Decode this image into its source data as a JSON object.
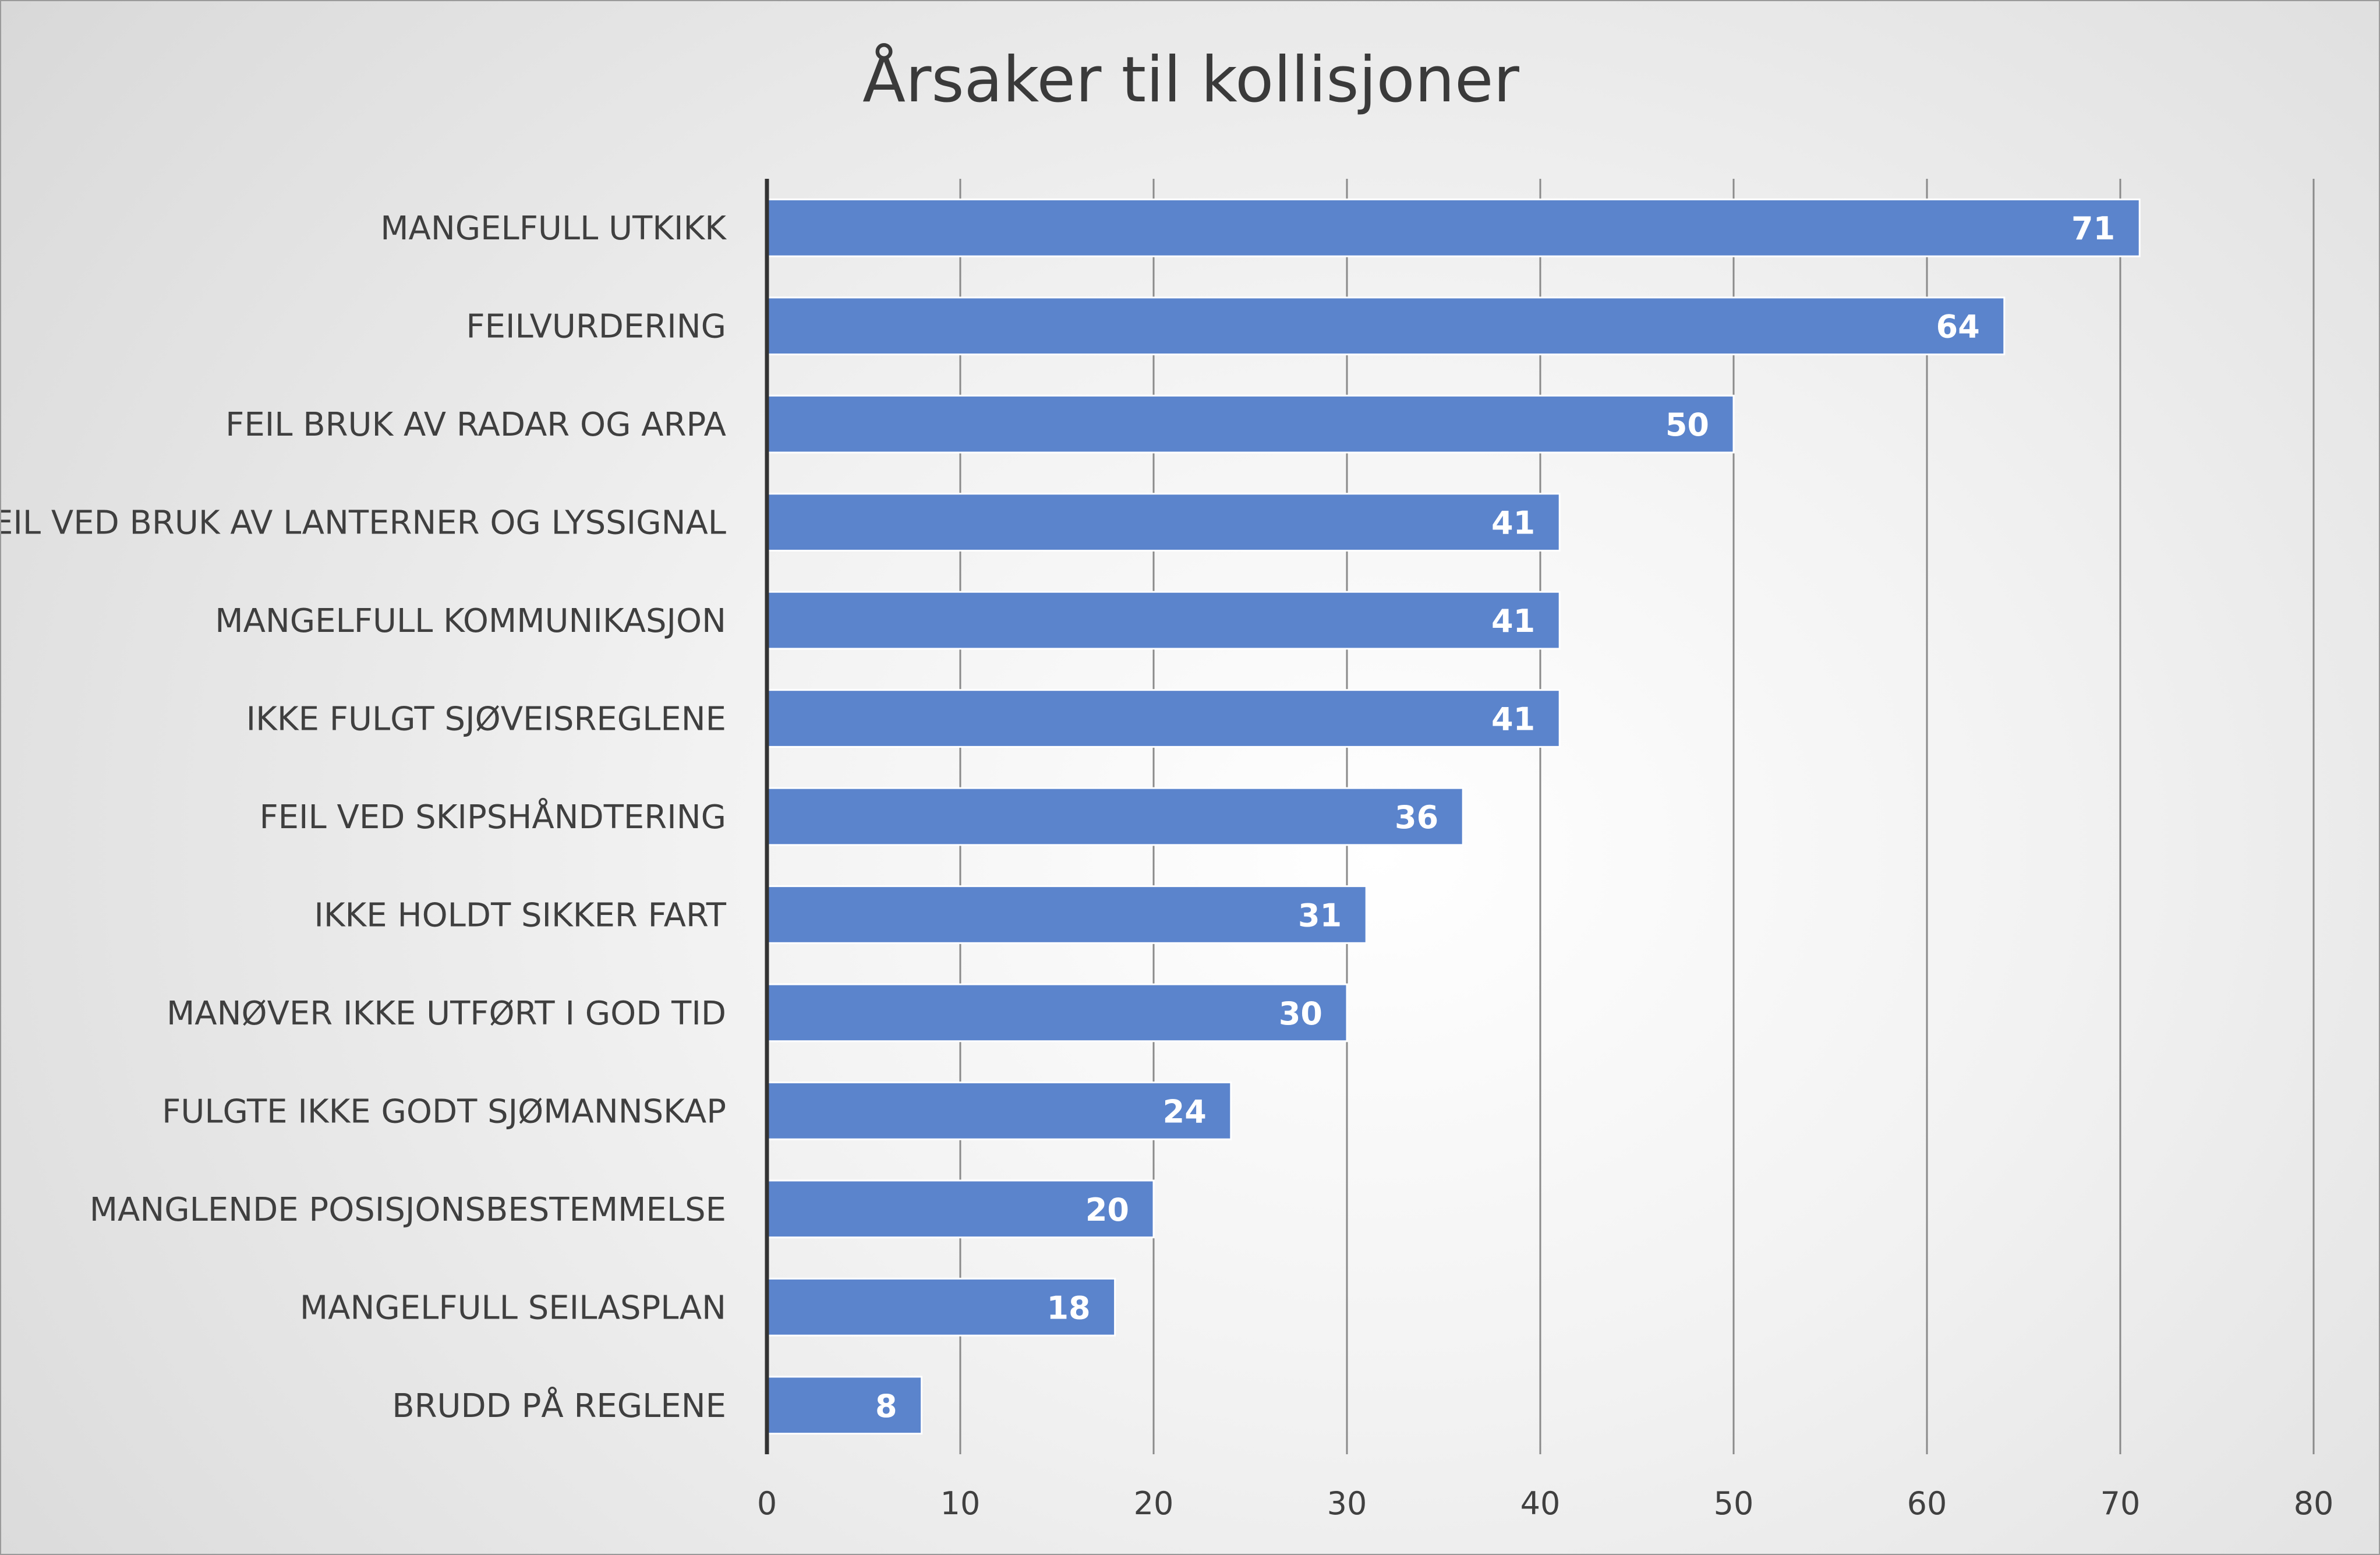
{
  "chart_data": {
    "type": "bar",
    "orientation": "horizontal",
    "title": "Årsaker til kollisjoner",
    "xlabel": "",
    "ylabel": "",
    "xlim": [
      0,
      80
    ],
    "x_ticks": [
      0,
      10,
      20,
      30,
      40,
      50,
      60,
      70,
      80
    ],
    "grid": true,
    "legend": "none",
    "bar_color": "#5b84cc",
    "categories": [
      "MANGELFULL UTKIKK",
      "FEILVURDERING",
      "FEIL BRUK AV RADAR OG ARPA",
      "FEIL VED BRUK AV LANTERNER OG LYSSIGNAL",
      "MANGELFULL KOMMUNIKASJON",
      "IKKE FULGT SJØVEISREGLENE",
      "FEIL VED SKIPSHÅNDTERING",
      "IKKE HOLDT SIKKER FART",
      "MANØVER IKKE UTFØRT I GOD TID",
      "FULGTE IKKE GODT SJØMANNSKAP",
      "MANGLENDE POSISJONSBESTEMMELSE",
      "MANGELFULL SEILASPLAN",
      "BRUDD PÅ REGLENE"
    ],
    "values": [
      71,
      64,
      50,
      41,
      41,
      41,
      36,
      31,
      30,
      24,
      20,
      18,
      8
    ]
  }
}
